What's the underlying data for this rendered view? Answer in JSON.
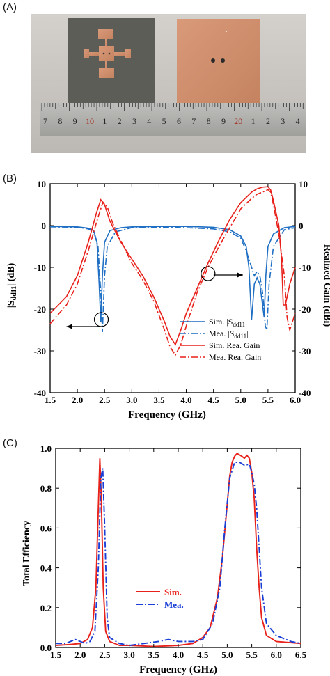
{
  "panels": {
    "a_label": "(A)",
    "b_label": "(B)",
    "c_label": "(C)"
  },
  "photo": {
    "ruler_numbers": [
      "7",
      "8",
      "9",
      "10",
      "1",
      "2",
      "3",
      "4",
      "5",
      "6",
      "7",
      "8",
      "9",
      "20",
      "1",
      "2",
      "3",
      "4"
    ],
    "highlight_numbers": [
      "10",
      "20"
    ]
  },
  "chart_data": [
    {
      "type": "line",
      "panel": "B",
      "xlabel": "Frequency (GHz)",
      "ylabel_left_main": "|S",
      "ylabel_left_sub": "dd11",
      "ylabel_left_tail": "| (dB)",
      "ylabel_right": "Realized Gain (dBi)",
      "xlim": [
        1.5,
        6.0
      ],
      "ylim": [
        -40,
        10
      ],
      "x_ticks": [
        "1.5",
        "2.0",
        "2.5",
        "3.0",
        "3.5",
        "4.0",
        "4.5",
        "5.0",
        "5.5",
        "6.0"
      ],
      "y_ticks_left": [
        "10",
        "0",
        "-10",
        "-20",
        "-30",
        "-40"
      ],
      "y_ticks_right": [
        "10",
        "0",
        "-10",
        "-20",
        "-30",
        "-40"
      ],
      "grid": false,
      "legend_position": "bottom-right",
      "series": [
        {
          "name": "Sim. |Sdd11|",
          "legend_main": "Sim. |S",
          "legend_sub": "dd11",
          "legend_tail": "|",
          "color": "#1f6fc4",
          "dash": "solid",
          "x": [
            1.5,
            2.0,
            2.2,
            2.3,
            2.36,
            2.4,
            2.43,
            2.46,
            2.5,
            2.6,
            2.8,
            3.0,
            3.5,
            4.0,
            4.5,
            4.8,
            5.0,
            5.1,
            5.15,
            5.2,
            5.25,
            5.3,
            5.35,
            5.4,
            5.43,
            5.46,
            5.5,
            5.6,
            5.8,
            6.0
          ],
          "y": [
            -0.2,
            -0.3,
            -0.6,
            -1.2,
            -4,
            -14,
            -23,
            -12,
            -4,
            -1.2,
            -0.5,
            -0.3,
            -0.2,
            -0.2,
            -0.4,
            -1,
            -2.5,
            -5,
            -10,
            -22.5,
            -14,
            -12.5,
            -14,
            -19,
            -22,
            -12,
            -5,
            -2,
            -0.5,
            -0.2
          ]
        },
        {
          "name": "Mea. |Sdd11|",
          "legend_main": "Mea. |S",
          "legend_sub": "dd11",
          "legend_tail": "|",
          "color": "#1f6fc4",
          "dash": "dashdot",
          "x": [
            1.5,
            2.0,
            2.2,
            2.3,
            2.38,
            2.43,
            2.46,
            2.5,
            2.55,
            2.7,
            3.0,
            3.5,
            4.0,
            4.5,
            4.8,
            5.0,
            5.1,
            5.2,
            5.25,
            5.3,
            5.35,
            5.4,
            5.45,
            5.48,
            5.52,
            5.6,
            5.8,
            6.0
          ],
          "y": [
            -0.3,
            -0.4,
            -0.8,
            -1.5,
            -5,
            -16,
            -25.5,
            -12,
            -5,
            -1.5,
            -0.5,
            -0.4,
            -0.5,
            -0.8,
            -1.5,
            -3,
            -6,
            -10,
            -12,
            -11,
            -12,
            -16,
            -24,
            -25,
            -14,
            -5,
            -1,
            -0.5
          ]
        },
        {
          "name": "Sim. Rea. Gain",
          "color": "#e8211a",
          "dash": "solid",
          "x": [
            1.5,
            1.8,
            2.0,
            2.2,
            2.35,
            2.43,
            2.5,
            2.6,
            2.8,
            3.0,
            3.2,
            3.4,
            3.6,
            3.7,
            3.8,
            3.9,
            4.0,
            4.2,
            4.4,
            4.6,
            4.8,
            5.0,
            5.2,
            5.3,
            5.4,
            5.5,
            5.55,
            5.6,
            5.7,
            5.75,
            5.78,
            5.82,
            5.9,
            6.0
          ],
          "y": [
            -21,
            -17,
            -12,
            -4,
            3,
            6.2,
            5,
            1,
            -4,
            -8,
            -12,
            -17,
            -23,
            -26.5,
            -28.5,
            -25,
            -21,
            -15,
            -9,
            -3.5,
            1.5,
            5.5,
            8,
            8.8,
            9.2,
            9.3,
            8.5,
            6,
            0,
            -8,
            -19,
            -19,
            -14,
            -10
          ]
        },
        {
          "name": "Mea. Rea. Gain",
          "color": "#e8211a",
          "dash": "dashdot",
          "x": [
            1.5,
            1.8,
            2.0,
            2.2,
            2.38,
            2.47,
            2.55,
            2.65,
            2.85,
            3.0,
            3.2,
            3.4,
            3.6,
            3.7,
            3.8,
            3.9,
            4.0,
            4.2,
            4.4,
            4.6,
            4.8,
            5.0,
            5.2,
            5.3,
            5.4,
            5.5,
            5.55,
            5.6,
            5.7,
            5.8,
            5.85,
            5.9,
            6.0
          ],
          "y": [
            -23.5,
            -19,
            -14,
            -6,
            2,
            5.6,
            4.5,
            0.5,
            -5,
            -9,
            -13,
            -18,
            -25,
            -29,
            -31,
            -28.5,
            -24,
            -16,
            -10,
            -5,
            -0.5,
            4,
            6.5,
            7.5,
            8,
            8.6,
            8,
            5,
            -2,
            -12,
            -22,
            -25,
            -21
          ]
        }
      ],
      "annotations": [
        {
          "type": "circle-arrow",
          "x": 2.44,
          "y": -22.5,
          "direction": "left"
        },
        {
          "type": "circle-arrow",
          "x": 4.4,
          "y": -11.5,
          "direction": "right"
        }
      ]
    },
    {
      "type": "line",
      "panel": "C",
      "xlabel": "Frequency (GHz)",
      "ylabel": "Total Efficiency",
      "xlim": [
        1.5,
        6.5
      ],
      "ylim": [
        0.0,
        1.0
      ],
      "x_ticks": [
        "1.5",
        "2.0",
        "2.5",
        "3.0",
        "3.5",
        "4.0",
        "4.5",
        "5.0",
        "5.5",
        "6.0",
        "6.5"
      ],
      "y_ticks": [
        "0.0",
        "0.2",
        "0.4",
        "0.6",
        "0.8",
        "1.0"
      ],
      "grid": false,
      "legend_position": "bottom-center",
      "series": [
        {
          "name": "Sim.",
          "color": "#e8211a",
          "dash": "solid",
          "x": [
            1.5,
            1.8,
            2.0,
            2.15,
            2.25,
            2.32,
            2.37,
            2.4,
            2.43,
            2.47,
            2.52,
            2.6,
            2.8,
            3.0,
            3.5,
            4.0,
            4.3,
            4.5,
            4.65,
            4.8,
            4.9,
            5.0,
            5.05,
            5.1,
            5.15,
            5.2,
            5.3,
            5.35,
            5.4,
            5.45,
            5.5,
            5.55,
            5.6,
            5.65,
            5.7,
            5.8,
            6.0,
            6.5
          ],
          "y": [
            0.01,
            0.015,
            0.02,
            0.04,
            0.1,
            0.3,
            0.7,
            0.95,
            0.75,
            0.3,
            0.08,
            0.03,
            0.01,
            0.01,
            0.005,
            0.01,
            0.02,
            0.05,
            0.1,
            0.25,
            0.45,
            0.72,
            0.86,
            0.93,
            0.96,
            0.975,
            0.96,
            0.95,
            0.965,
            0.95,
            0.88,
            0.75,
            0.5,
            0.3,
            0.15,
            0.06,
            0.03,
            0.02
          ]
        },
        {
          "name": "Mea.",
          "color": "#1a3fd6",
          "dash": "dashdot",
          "x": [
            1.5,
            1.7,
            1.9,
            2.0,
            2.1,
            2.2,
            2.3,
            2.37,
            2.42,
            2.46,
            2.5,
            2.55,
            2.6,
            2.8,
            3.0,
            3.3,
            3.6,
            3.8,
            4.0,
            4.3,
            4.5,
            4.7,
            4.85,
            4.95,
            5.05,
            5.15,
            5.25,
            5.35,
            5.45,
            5.5,
            5.55,
            5.6,
            5.65,
            5.7,
            5.8,
            6.0,
            6.3,
            6.5
          ],
          "y": [
            0.02,
            0.02,
            0.04,
            0.03,
            0.02,
            0.03,
            0.08,
            0.4,
            0.85,
            0.9,
            0.6,
            0.15,
            0.05,
            0.02,
            0.01,
            0.02,
            0.03,
            0.04,
            0.03,
            0.03,
            0.04,
            0.12,
            0.3,
            0.6,
            0.85,
            0.93,
            0.93,
            0.915,
            0.92,
            0.88,
            0.82,
            0.7,
            0.5,
            0.3,
            0.12,
            0.06,
            0.03,
            0.02
          ]
        }
      ]
    }
  ]
}
